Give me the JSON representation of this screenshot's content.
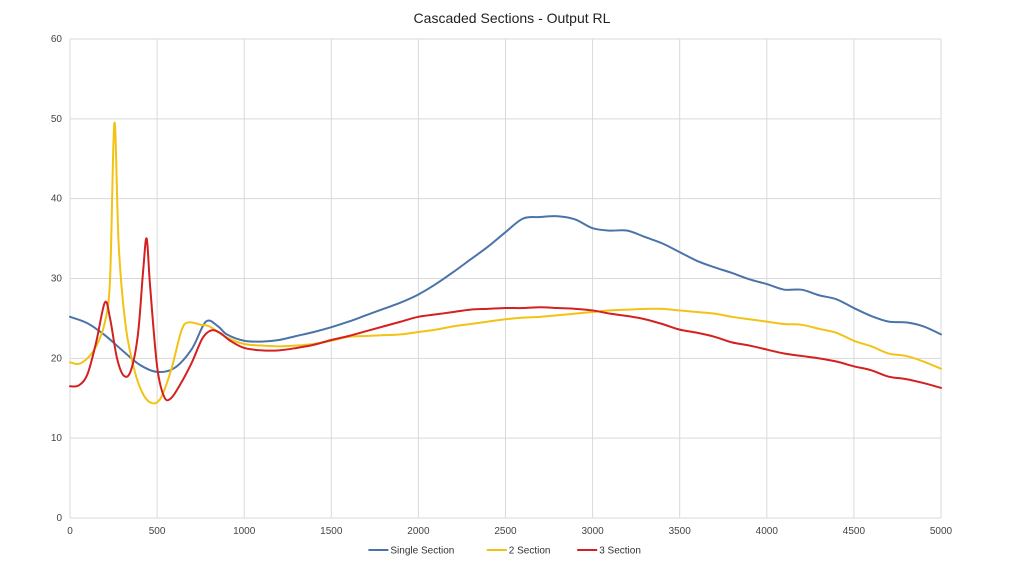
{
  "chart_data": {
    "type": "line",
    "title": "Cascaded Sections - Output RL",
    "xlabel": "",
    "ylabel": "",
    "xlim": [
      0,
      5000
    ],
    "ylim": [
      0,
      60
    ],
    "grid": true,
    "legend_position": "bottom",
    "x_ticks": [
      "0",
      "500",
      "1000",
      "1500",
      "2000",
      "2500",
      "3000",
      "3500",
      "4000",
      "4500",
      "5000"
    ],
    "y_ticks": [
      "0",
      "10",
      "20",
      "30",
      "40",
      "50",
      "60"
    ],
    "x": [
      0,
      100,
      200,
      300,
      400,
      500,
      600,
      700,
      800,
      900,
      1000,
      1100,
      1200,
      1300,
      1400,
      1500,
      1600,
      1700,
      1800,
      1900,
      2000,
      2100,
      2200,
      2300,
      2400,
      2500,
      2600,
      2700,
      2800,
      2900,
      3000,
      3100,
      3200,
      3300,
      3400,
      3500,
      3600,
      3700,
      3800,
      3900,
      4000,
      4100,
      4200,
      4300,
      4400,
      4500,
      4600,
      4700,
      4800,
      4900,
      5000
    ],
    "series": [
      {
        "name": "Single Section",
        "color": "#4a74a8",
        "points": [
          [
            0,
            25.2
          ],
          [
            100,
            24.4
          ],
          [
            200,
            22.9
          ],
          [
            300,
            21.0
          ],
          [
            400,
            19.2
          ],
          [
            500,
            18.3
          ],
          [
            600,
            18.8
          ],
          [
            700,
            21.2
          ],
          [
            780,
            24.6
          ],
          [
            850,
            24.0
          ],
          [
            900,
            23.0
          ],
          [
            1000,
            22.2
          ],
          [
            1100,
            22.1
          ],
          [
            1200,
            22.3
          ],
          [
            1300,
            22.8
          ],
          [
            1400,
            23.3
          ],
          [
            1500,
            23.9
          ],
          [
            1600,
            24.6
          ],
          [
            1700,
            25.4
          ],
          [
            1800,
            26.2
          ],
          [
            1900,
            27.0
          ],
          [
            2000,
            28.0
          ],
          [
            2100,
            29.3
          ],
          [
            2200,
            30.8
          ],
          [
            2300,
            32.4
          ],
          [
            2400,
            34.0
          ],
          [
            2500,
            35.8
          ],
          [
            2600,
            37.5
          ],
          [
            2700,
            37.7
          ],
          [
            2800,
            37.8
          ],
          [
            2900,
            37.4
          ],
          [
            3000,
            36.3
          ],
          [
            3100,
            36.0
          ],
          [
            3200,
            36.0
          ],
          [
            3300,
            35.2
          ],
          [
            3400,
            34.4
          ],
          [
            3500,
            33.3
          ],
          [
            3600,
            32.2
          ],
          [
            3700,
            31.4
          ],
          [
            3800,
            30.7
          ],
          [
            3900,
            29.9
          ],
          [
            4000,
            29.3
          ],
          [
            4100,
            28.6
          ],
          [
            4200,
            28.6
          ],
          [
            4300,
            27.9
          ],
          [
            4400,
            27.4
          ],
          [
            4500,
            26.3
          ],
          [
            4600,
            25.3
          ],
          [
            4700,
            24.6
          ],
          [
            4800,
            24.5
          ],
          [
            4900,
            24.0
          ],
          [
            5000,
            23.0
          ]
        ]
      },
      {
        "name": "2 Section",
        "color": "#f2c314",
        "points": [
          [
            0,
            19.5
          ],
          [
            50,
            19.3
          ],
          [
            100,
            20.0
          ],
          [
            150,
            21.5
          ],
          [
            200,
            24.5
          ],
          [
            230,
            30.0
          ],
          [
            255,
            49.5
          ],
          [
            280,
            34.0
          ],
          [
            320,
            24.0
          ],
          [
            370,
            18.5
          ],
          [
            420,
            15.5
          ],
          [
            470,
            14.4
          ],
          [
            520,
            15.0
          ],
          [
            580,
            18.5
          ],
          [
            640,
            23.5
          ],
          [
            680,
            24.5
          ],
          [
            750,
            24.2
          ],
          [
            800,
            24.0
          ],
          [
            900,
            22.6
          ],
          [
            1000,
            21.8
          ],
          [
            1100,
            21.6
          ],
          [
            1200,
            21.5
          ],
          [
            1300,
            21.6
          ],
          [
            1400,
            21.8
          ],
          [
            1500,
            22.2
          ],
          [
            1600,
            22.7
          ],
          [
            1700,
            22.8
          ],
          [
            1800,
            22.9
          ],
          [
            1900,
            23.0
          ],
          [
            2000,
            23.3
          ],
          [
            2100,
            23.6
          ],
          [
            2200,
            24.0
          ],
          [
            2300,
            24.3
          ],
          [
            2400,
            24.6
          ],
          [
            2500,
            24.9
          ],
          [
            2600,
            25.1
          ],
          [
            2700,
            25.2
          ],
          [
            2800,
            25.4
          ],
          [
            2900,
            25.6
          ],
          [
            3000,
            25.8
          ],
          [
            3100,
            26.0
          ],
          [
            3200,
            26.1
          ],
          [
            3300,
            26.2
          ],
          [
            3400,
            26.2
          ],
          [
            3500,
            26.0
          ],
          [
            3600,
            25.8
          ],
          [
            3700,
            25.6
          ],
          [
            3800,
            25.2
          ],
          [
            3900,
            24.9
          ],
          [
            4000,
            24.6
          ],
          [
            4100,
            24.3
          ],
          [
            4200,
            24.2
          ],
          [
            4300,
            23.7
          ],
          [
            4400,
            23.2
          ],
          [
            4500,
            22.2
          ],
          [
            4600,
            21.5
          ],
          [
            4700,
            20.6
          ],
          [
            4800,
            20.3
          ],
          [
            4900,
            19.6
          ],
          [
            5000,
            18.7
          ]
        ]
      },
      {
        "name": "3 Section",
        "color": "#d42020",
        "points": [
          [
            0,
            16.5
          ],
          [
            50,
            16.6
          ],
          [
            100,
            18.0
          ],
          [
            150,
            22.0
          ],
          [
            200,
            27.0
          ],
          [
            230,
            25.0
          ],
          [
            270,
            20.0
          ],
          [
            310,
            17.8
          ],
          [
            350,
            18.5
          ],
          [
            390,
            23.0
          ],
          [
            420,
            31.0
          ],
          [
            440,
            35.0
          ],
          [
            460,
            29.0
          ],
          [
            500,
            19.0
          ],
          [
            540,
            15.2
          ],
          [
            580,
            15.0
          ],
          [
            640,
            17.0
          ],
          [
            700,
            19.5
          ],
          [
            760,
            22.5
          ],
          [
            810,
            23.5
          ],
          [
            860,
            23.2
          ],
          [
            920,
            22.2
          ],
          [
            1000,
            21.3
          ],
          [
            1100,
            21.0
          ],
          [
            1200,
            21.0
          ],
          [
            1300,
            21.3
          ],
          [
            1400,
            21.7
          ],
          [
            1500,
            22.3
          ],
          [
            1600,
            22.8
          ],
          [
            1700,
            23.4
          ],
          [
            1800,
            24.0
          ],
          [
            1900,
            24.6
          ],
          [
            2000,
            25.2
          ],
          [
            2100,
            25.5
          ],
          [
            2200,
            25.8
          ],
          [
            2300,
            26.1
          ],
          [
            2400,
            26.2
          ],
          [
            2500,
            26.3
          ],
          [
            2600,
            26.3
          ],
          [
            2700,
            26.4
          ],
          [
            2800,
            26.3
          ],
          [
            2900,
            26.2
          ],
          [
            3000,
            26.0
          ],
          [
            3100,
            25.6
          ],
          [
            3200,
            25.3
          ],
          [
            3300,
            24.9
          ],
          [
            3400,
            24.3
          ],
          [
            3500,
            23.6
          ],
          [
            3600,
            23.2
          ],
          [
            3700,
            22.7
          ],
          [
            3800,
            22.0
          ],
          [
            3900,
            21.6
          ],
          [
            4000,
            21.1
          ],
          [
            4100,
            20.6
          ],
          [
            4200,
            20.3
          ],
          [
            4300,
            20.0
          ],
          [
            4400,
            19.6
          ],
          [
            4500,
            19.0
          ],
          [
            4600,
            18.5
          ],
          [
            4700,
            17.7
          ],
          [
            4800,
            17.4
          ],
          [
            4900,
            16.9
          ],
          [
            5000,
            16.3
          ]
        ]
      }
    ]
  }
}
